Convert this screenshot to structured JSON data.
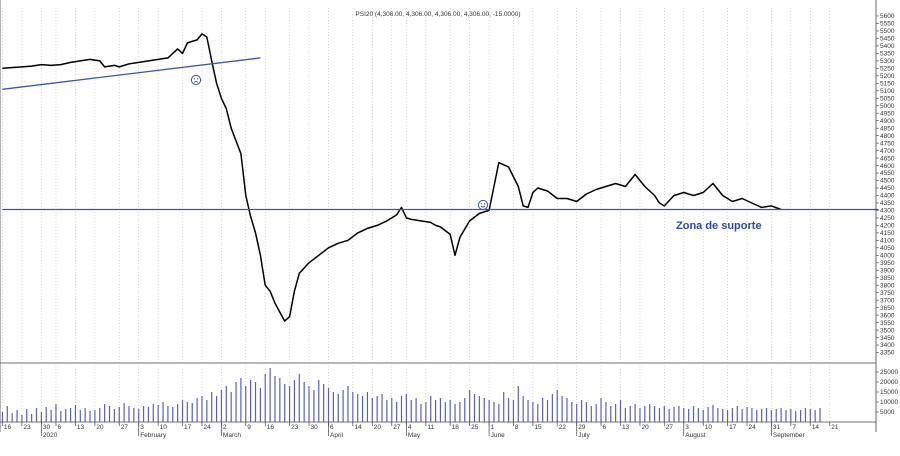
{
  "chart_data": {
    "type": "line",
    "title": "PSI20 (4,306.00, 4,306.00, 4,306.00, 4,306.00, -15.0000)",
    "annotation": "Zona de suporte",
    "colors": {
      "price": "#000000",
      "trendline": "#3a55b0",
      "volume": "#5560c0",
      "grid": "#bbbbbb"
    },
    "grid": true,
    "price_axis": {
      "ylim": [
        3300,
        5600
      ],
      "ticks": [
        5600,
        5550,
        5500,
        5450,
        5400,
        5350,
        5300,
        5250,
        5200,
        5150,
        5100,
        5050,
        5000,
        4950,
        4900,
        4850,
        4800,
        4750,
        4700,
        4650,
        4600,
        4550,
        4500,
        4450,
        4400,
        4350,
        4300,
        4250,
        4200,
        4150,
        4100,
        4050,
        4000,
        3950,
        3900,
        3850,
        3800,
        3750,
        3700,
        3650,
        3600,
        3550,
        3500,
        3450,
        3400,
        3350
      ]
    },
    "volume_axis": {
      "ylim": [
        0,
        28000
      ],
      "ticks": [
        25000,
        20000,
        15000,
        10000,
        5000
      ],
      "tick_labels": [
        "25000",
        "20000",
        "15000",
        "10000",
        "5000"
      ]
    },
    "x_axis": {
      "n_slots": 180,
      "day_ticks": [
        {
          "slot": 0,
          "label": "16"
        },
        {
          "slot": 4,
          "label": "23"
        },
        {
          "slot": 8,
          "label": "30"
        },
        {
          "slot": 11,
          "label": "6"
        },
        {
          "slot": 15,
          "label": "13"
        },
        {
          "slot": 19,
          "label": "20"
        },
        {
          "slot": 24,
          "label": "27"
        },
        {
          "slot": 28,
          "label": "3"
        },
        {
          "slot": 32,
          "label": "10"
        },
        {
          "slot": 37,
          "label": "17"
        },
        {
          "slot": 41,
          "label": "24"
        },
        {
          "slot": 45,
          "label": "2"
        },
        {
          "slot": 50,
          "label": "9"
        },
        {
          "slot": 54,
          "label": "16"
        },
        {
          "slot": 59,
          "label": "23"
        },
        {
          "slot": 63,
          "label": "30"
        },
        {
          "slot": 67,
          "label": "6"
        },
        {
          "slot": 72,
          "label": "14"
        },
        {
          "slot": 76,
          "label": "20"
        },
        {
          "slot": 80,
          "label": "27"
        },
        {
          "slot": 83,
          "label": "4"
        },
        {
          "slot": 87,
          "label": "11"
        },
        {
          "slot": 92,
          "label": "18"
        },
        {
          "slot": 96,
          "label": "25"
        },
        {
          "slot": 100,
          "label": "1"
        },
        {
          "slot": 105,
          "label": "8"
        },
        {
          "slot": 109,
          "label": "15"
        },
        {
          "slot": 114,
          "label": "22"
        },
        {
          "slot": 118,
          "label": "29"
        },
        {
          "slot": 123,
          "label": "6"
        },
        {
          "slot": 127,
          "label": "13"
        },
        {
          "slot": 131,
          "label": "20"
        },
        {
          "slot": 136,
          "label": "27"
        },
        {
          "slot": 140,
          "label": "3"
        },
        {
          "slot": 144,
          "label": "10"
        },
        {
          "slot": 149,
          "label": "17"
        },
        {
          "slot": 153,
          "label": "24"
        },
        {
          "slot": 158,
          "label": "31"
        },
        {
          "slot": 162,
          "label": "7"
        },
        {
          "slot": 166,
          "label": "14"
        },
        {
          "slot": 170,
          "label": "21"
        }
      ],
      "month_labels": [
        {
          "slot": 8,
          "label": "2020"
        },
        {
          "slot": 28,
          "label": "February"
        },
        {
          "slot": 45,
          "label": "March"
        },
        {
          "slot": 67,
          "label": "April"
        },
        {
          "slot": 83,
          "label": "May"
        },
        {
          "slot": 100,
          "label": "June"
        },
        {
          "slot": 118,
          "label": "July"
        },
        {
          "slot": 140,
          "label": "August"
        },
        {
          "slot": 158,
          "label": "September"
        }
      ]
    },
    "series": [
      {
        "name": "PSI20",
        "x": [
          0,
          4,
          6,
          8,
          10,
          12,
          14,
          16,
          18,
          20,
          21,
          23,
          24,
          26,
          28,
          30,
          32,
          34,
          36,
          37,
          38,
          40,
          41,
          42,
          43,
          44,
          45,
          46,
          47,
          49,
          50,
          51,
          52,
          53,
          54,
          55,
          56,
          57,
          58,
          59,
          60,
          61,
          63,
          65,
          67,
          69,
          71,
          73,
          75,
          77,
          79,
          81,
          82,
          83,
          84,
          86,
          88,
          89,
          90,
          92,
          93,
          94,
          96,
          98,
          100,
          102,
          104,
          106,
          107,
          108,
          109,
          110,
          112,
          114,
          116,
          118,
          120,
          122,
          124,
          126,
          128,
          130,
          132,
          134,
          135,
          136,
          138,
          140,
          142,
          144,
          146,
          148,
          150,
          152,
          154,
          156,
          158,
          160
        ],
        "values": [
          5250,
          5260,
          5265,
          5275,
          5270,
          5275,
          5290,
          5300,
          5310,
          5300,
          5260,
          5270,
          5260,
          5280,
          5290,
          5300,
          5310,
          5320,
          5380,
          5350,
          5420,
          5440,
          5480,
          5460,
          5300,
          5150,
          5050,
          4980,
          4850,
          4680,
          4400,
          4260,
          4150,
          4000,
          3800,
          3760,
          3680,
          3620,
          3560,
          3590,
          3760,
          3880,
          3950,
          4000,
          4050,
          4080,
          4100,
          4150,
          4180,
          4200,
          4230,
          4270,
          4320,
          4250,
          4240,
          4230,
          4220,
          4200,
          4190,
          4140,
          4000,
          4120,
          4230,
          4280,
          4300,
          4620,
          4590,
          4460,
          4330,
          4320,
          4420,
          4450,
          4430,
          4380,
          4380,
          4360,
          4410,
          4440,
          4460,
          4480,
          4460,
          4540,
          4460,
          4400,
          4350,
          4330,
          4400,
          4420,
          4400,
          4420,
          4480,
          4400,
          4360,
          4380,
          4350,
          4320,
          4330,
          4306
        ]
      },
      {
        "name": "trendline",
        "x": [
          0,
          53
        ],
        "values": [
          5110,
          5320
        ]
      },
      {
        "name": "support",
        "x": [
          0,
          180
        ],
        "values": [
          4306,
          4306
        ]
      }
    ],
    "volume": [
      5000,
      8000,
      4500,
      6000,
      3500,
      6500,
      4000,
      7000,
      5000,
      7500,
      6000,
      9000,
      5500,
      6500,
      7000,
      8500,
      6000,
      7000,
      5500,
      6000,
      7000,
      9000,
      8000,
      6500,
      7500,
      9500,
      8000,
      7000,
      6500,
      8000,
      7500,
      9000,
      8500,
      10000,
      8000,
      7500,
      9000,
      11000,
      10000,
      9500,
      12000,
      13000,
      11000,
      15000,
      13000,
      16000,
      18000,
      15000,
      20000,
      22000,
      18000,
      21000,
      20000,
      17000,
      24000,
      27000,
      23000,
      22000,
      19000,
      18000,
      21000,
      24000,
      20000,
      18000,
      16000,
      21000,
      19000,
      17000,
      15000,
      14000,
      16000,
      18000,
      15000,
      14000,
      13000,
      15000,
      12000,
      13000,
      14000,
      11000,
      12000,
      10000,
      13000,
      14000,
      11000,
      12000,
      9000,
      10000,
      13000,
      11000,
      12000,
      10000,
      11000,
      9000,
      10000,
      12000,
      16000,
      14000,
      13000,
      12000,
      11000,
      10000,
      9000,
      15000,
      12000,
      11000,
      18000,
      13000,
      11000,
      10000,
      9000,
      12000,
      11000,
      14000,
      16000,
      13000,
      12000,
      10000,
      9000,
      11000,
      10000,
      8000,
      9000,
      12000,
      10000,
      8000,
      9000,
      11000,
      7000,
      8000,
      9000,
      7000,
      8000,
      9000,
      8000,
      7000,
      8000,
      6500,
      7500,
      8000,
      7000,
      6500,
      8000,
      7000,
      6000,
      7500,
      8500,
      7000,
      6500,
      6000,
      7000,
      8000,
      6500,
      7500,
      7000,
      6000,
      6500,
      7000,
      6000,
      6500,
      7000,
      6000,
      6500,
      5500,
      6000,
      7000,
      6500,
      6000,
      7000
    ]
  },
  "icons": {
    "frown": "frown-face-icon",
    "smile": "smile-face-icon"
  }
}
